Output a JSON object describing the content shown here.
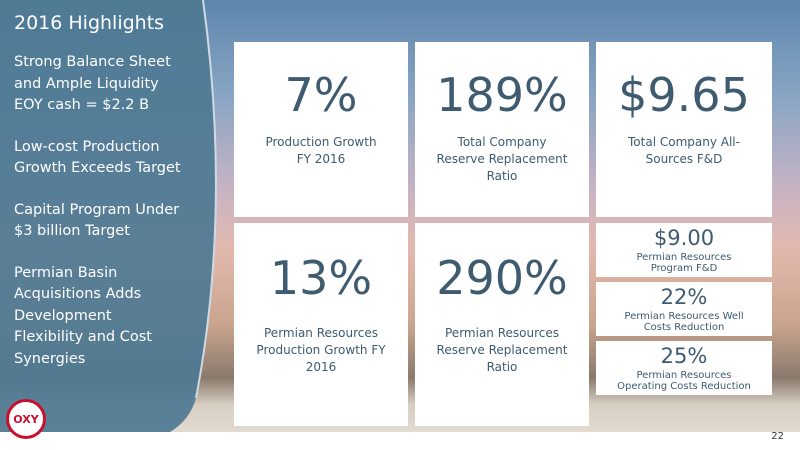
{
  "sidebar": {
    "title": "2016 Highlights",
    "bullets": [
      [
        "Strong Balance Sheet",
        "and Ample Liquidity",
        "EOY cash = $2.2 B"
      ],
      [
        "Low-cost Production",
        "Growth Exceeds Target"
      ],
      [
        "Capital Program Under",
        "$3 billion Target"
      ],
      [
        "Permian Basin",
        "Acquisitions Adds",
        "Development",
        "Flexibility and Cost",
        "Synergies"
      ]
    ]
  },
  "tiles": [
    {
      "value": "7%",
      "label": [
        "Production Growth",
        "FY 2016"
      ]
    },
    {
      "value": "189%",
      "label": [
        "Total Company",
        "Reserve Replacement",
        "Ratio"
      ]
    },
    {
      "value": "$9.65",
      "label": [
        "Total Company All-",
        "Sources F&D"
      ]
    },
    {
      "value": "13%",
      "label": [
        "Permian Resources",
        "Production Growth FY",
        "2016"
      ]
    },
    {
      "value": "290%",
      "label": [
        "Permian Resources",
        "Reserve Replacement",
        "Ratio"
      ]
    }
  ],
  "small_tiles": [
    {
      "value": "$9.00",
      "label": [
        "Permian Resources",
        "Program F&D"
      ]
    },
    {
      "value": "22%",
      "label": [
        "Permian Resources Well",
        "Costs Reduction"
      ]
    },
    {
      "value": "25%",
      "label": [
        "Permian Resources",
        "Operating Costs Reduction"
      ]
    }
  ],
  "logo": "OXY",
  "page_number": "22"
}
